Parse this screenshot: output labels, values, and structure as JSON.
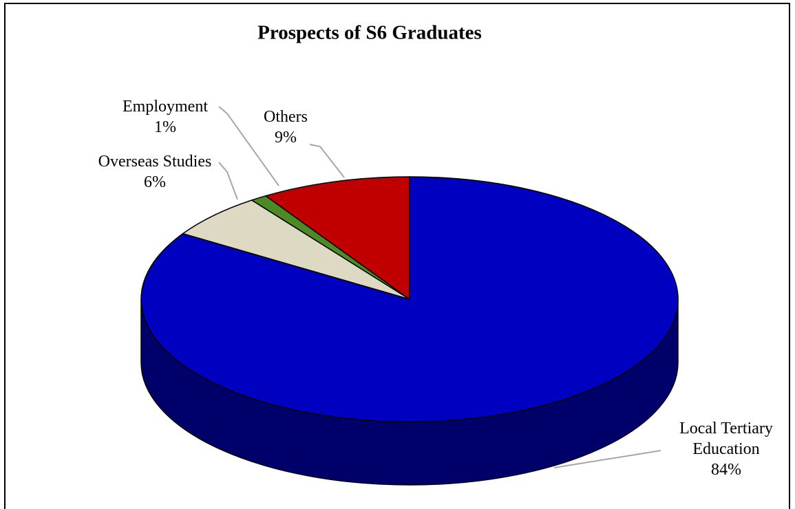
{
  "chart_data": {
    "type": "pie",
    "title": "Prospects of S6 Graduates",
    "categories": [
      "Local Tertiary Education",
      "Overseas Studies",
      "Employment",
      "Others"
    ],
    "values": [
      84,
      6,
      1,
      9
    ],
    "value_labels": [
      "84%",
      "6%",
      "1%",
      "9%"
    ],
    "colors": [
      "#0000c0",
      "#ddd9c3",
      "#4e8a24",
      "#c00000"
    ]
  }
}
